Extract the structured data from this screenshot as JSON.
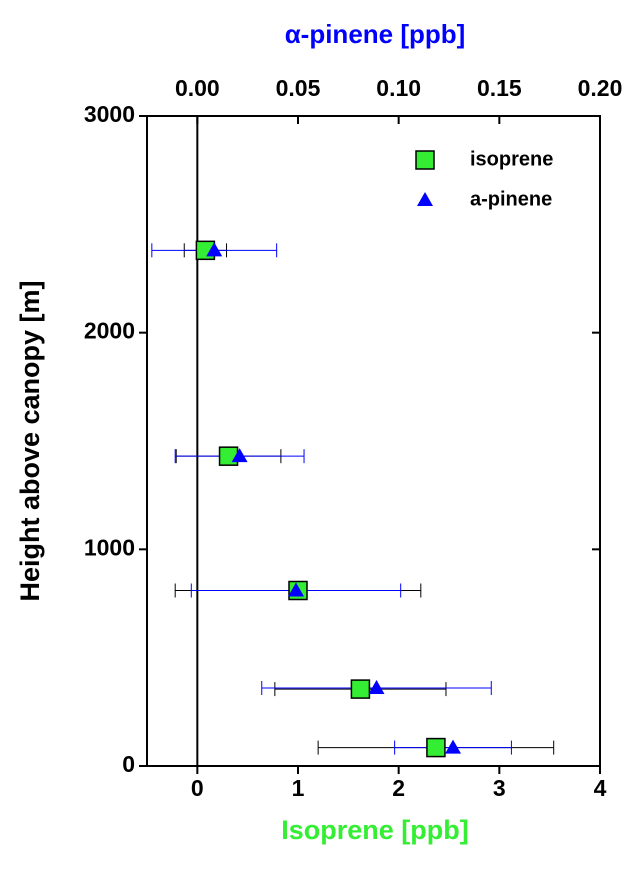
{
  "chart_data": {
    "type": "scatter",
    "x_label": "Isoprene [ppb]",
    "x2_label": "α-pinene [ppb]",
    "y_label": "Height above canopy [m]",
    "xlim": [
      -0.5,
      4
    ],
    "xticks": [
      0,
      1,
      2,
      3,
      4
    ],
    "x2lim": [
      -0.025,
      0.2
    ],
    "x2ticks": [
      {
        "value": 0,
        "label": "0.00"
      },
      {
        "value": 0.05,
        "label": "0.05"
      },
      {
        "value": 0.1,
        "label": "0.10"
      },
      {
        "value": 0.15,
        "label": "0.15"
      },
      {
        "value": 0.2,
        "label": "0.20"
      }
    ],
    "ylim": [
      0,
      3000
    ],
    "yticks": [
      0,
      1000,
      2000,
      3000
    ],
    "x_label_color": "#33ee33",
    "x2_label_color": "#0000ff",
    "legend": "upper right",
    "series": [
      {
        "name": "isoprene",
        "color": "#33ee33",
        "marker": "square",
        "axis": "x",
        "error_color": "#000000",
        "x": [
          0.08,
          0.31,
          1.0,
          1.62,
          2.37
        ],
        "xerr": [
          0.21,
          0.52,
          1.22,
          0.85,
          1.17
        ],
        "y": [
          2380,
          1430,
          810,
          355,
          85
        ]
      },
      {
        "name": "a-pinene",
        "color": "#0000ff",
        "marker": "triangle",
        "axis": "x2",
        "error_color": "#0000ff",
        "x": [
          0.0084,
          0.021,
          0.049,
          0.089,
          0.127
        ],
        "xerr": [
          0.031,
          0.032,
          0.052,
          0.057,
          0.029
        ],
        "y": [
          2380,
          1430,
          810,
          360,
          85
        ]
      }
    ]
  }
}
